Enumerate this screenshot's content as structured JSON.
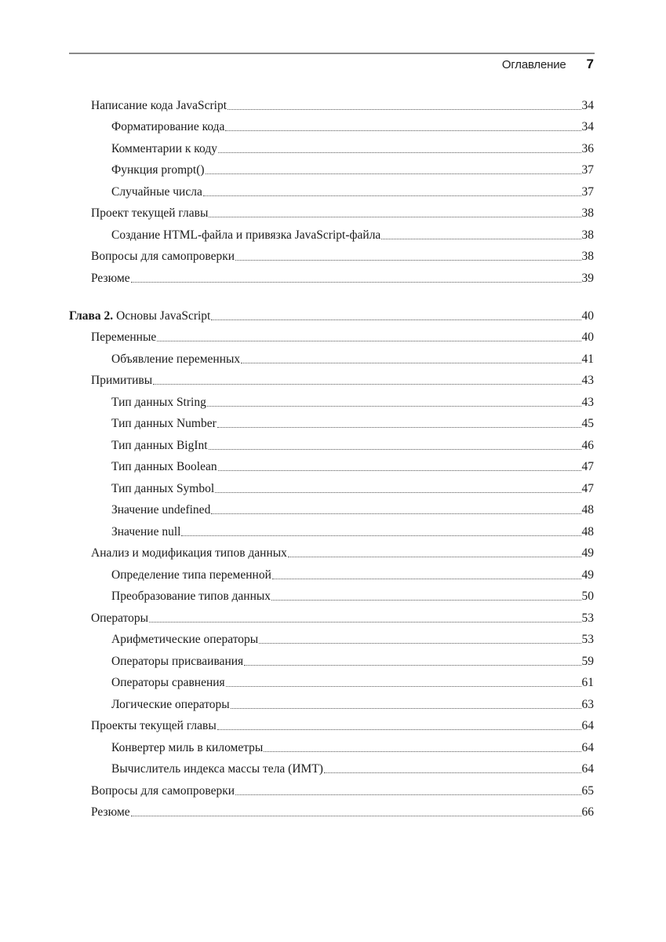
{
  "header": {
    "title": "Оглавление",
    "page_number": "7"
  },
  "sections": [
    {
      "entries": [
        {
          "level": 1,
          "title": "Написание кода JavaScript",
          "page": "34"
        },
        {
          "level": 2,
          "title": "Форматирование кода",
          "page": "34"
        },
        {
          "level": 2,
          "title": "Комментарии к коду",
          "page": "36"
        },
        {
          "level": 2,
          "title": "Функция prompt()",
          "page": "37"
        },
        {
          "level": 2,
          "title": "Случайные числа",
          "page": "37"
        },
        {
          "level": 1,
          "title": "Проект текущей главы",
          "page": "38"
        },
        {
          "level": 2,
          "title": "Создание HTML-файла и привязка JavaScript-файла",
          "page": "38"
        },
        {
          "level": 1,
          "title": "Вопросы для самопроверки",
          "page": "38"
        },
        {
          "level": 1,
          "title": "Резюме",
          "page": "39"
        }
      ]
    },
    {
      "entries": [
        {
          "level": 0,
          "prefix": "Глава 2.",
          "title": " Основы JavaScript",
          "page": "40"
        },
        {
          "level": 1,
          "title": "Переменные",
          "page": "40"
        },
        {
          "level": 2,
          "title": "Объявление переменных",
          "page": "41"
        },
        {
          "level": 1,
          "title": "Примитивы",
          "page": "43"
        },
        {
          "level": 2,
          "title": "Тип данных String",
          "page": "43"
        },
        {
          "level": 2,
          "title": "Тип данных Number",
          "page": "45"
        },
        {
          "level": 2,
          "title": "Тип данных BigInt",
          "page": "46"
        },
        {
          "level": 2,
          "title": "Тип данных Boolean",
          "page": "47"
        },
        {
          "level": 2,
          "title": "Тип данных Symbol",
          "page": "47"
        },
        {
          "level": 2,
          "title": "Значение undefined",
          "page": "48"
        },
        {
          "level": 2,
          "title": "Значение null",
          "page": "48"
        },
        {
          "level": 1,
          "title": "Анализ и модификация типов данных",
          "page": "49"
        },
        {
          "level": 2,
          "title": "Определение типа переменной",
          "page": "49"
        },
        {
          "level": 2,
          "title": "Преобразование типов данных",
          "page": "50"
        },
        {
          "level": 1,
          "title": "Операторы",
          "page": "53"
        },
        {
          "level": 2,
          "title": "Арифметические операторы",
          "page": "53"
        },
        {
          "level": 2,
          "title": "Операторы присваивания",
          "page": "59"
        },
        {
          "level": 2,
          "title": "Операторы сравнения",
          "page": "61"
        },
        {
          "level": 2,
          "title": "Логические операторы",
          "page": "63"
        },
        {
          "level": 1,
          "title": "Проекты текущей главы",
          "page": "64"
        },
        {
          "level": 2,
          "title": "Конвертер миль в километры",
          "page": "64"
        },
        {
          "level": 2,
          "title": "Вычислитель индекса массы тела (ИМТ)",
          "page": "64"
        },
        {
          "level": 1,
          "title": "Вопросы для самопроверки",
          "page": "65"
        },
        {
          "level": 1,
          "title": "Резюме",
          "page": "66"
        }
      ]
    }
  ]
}
